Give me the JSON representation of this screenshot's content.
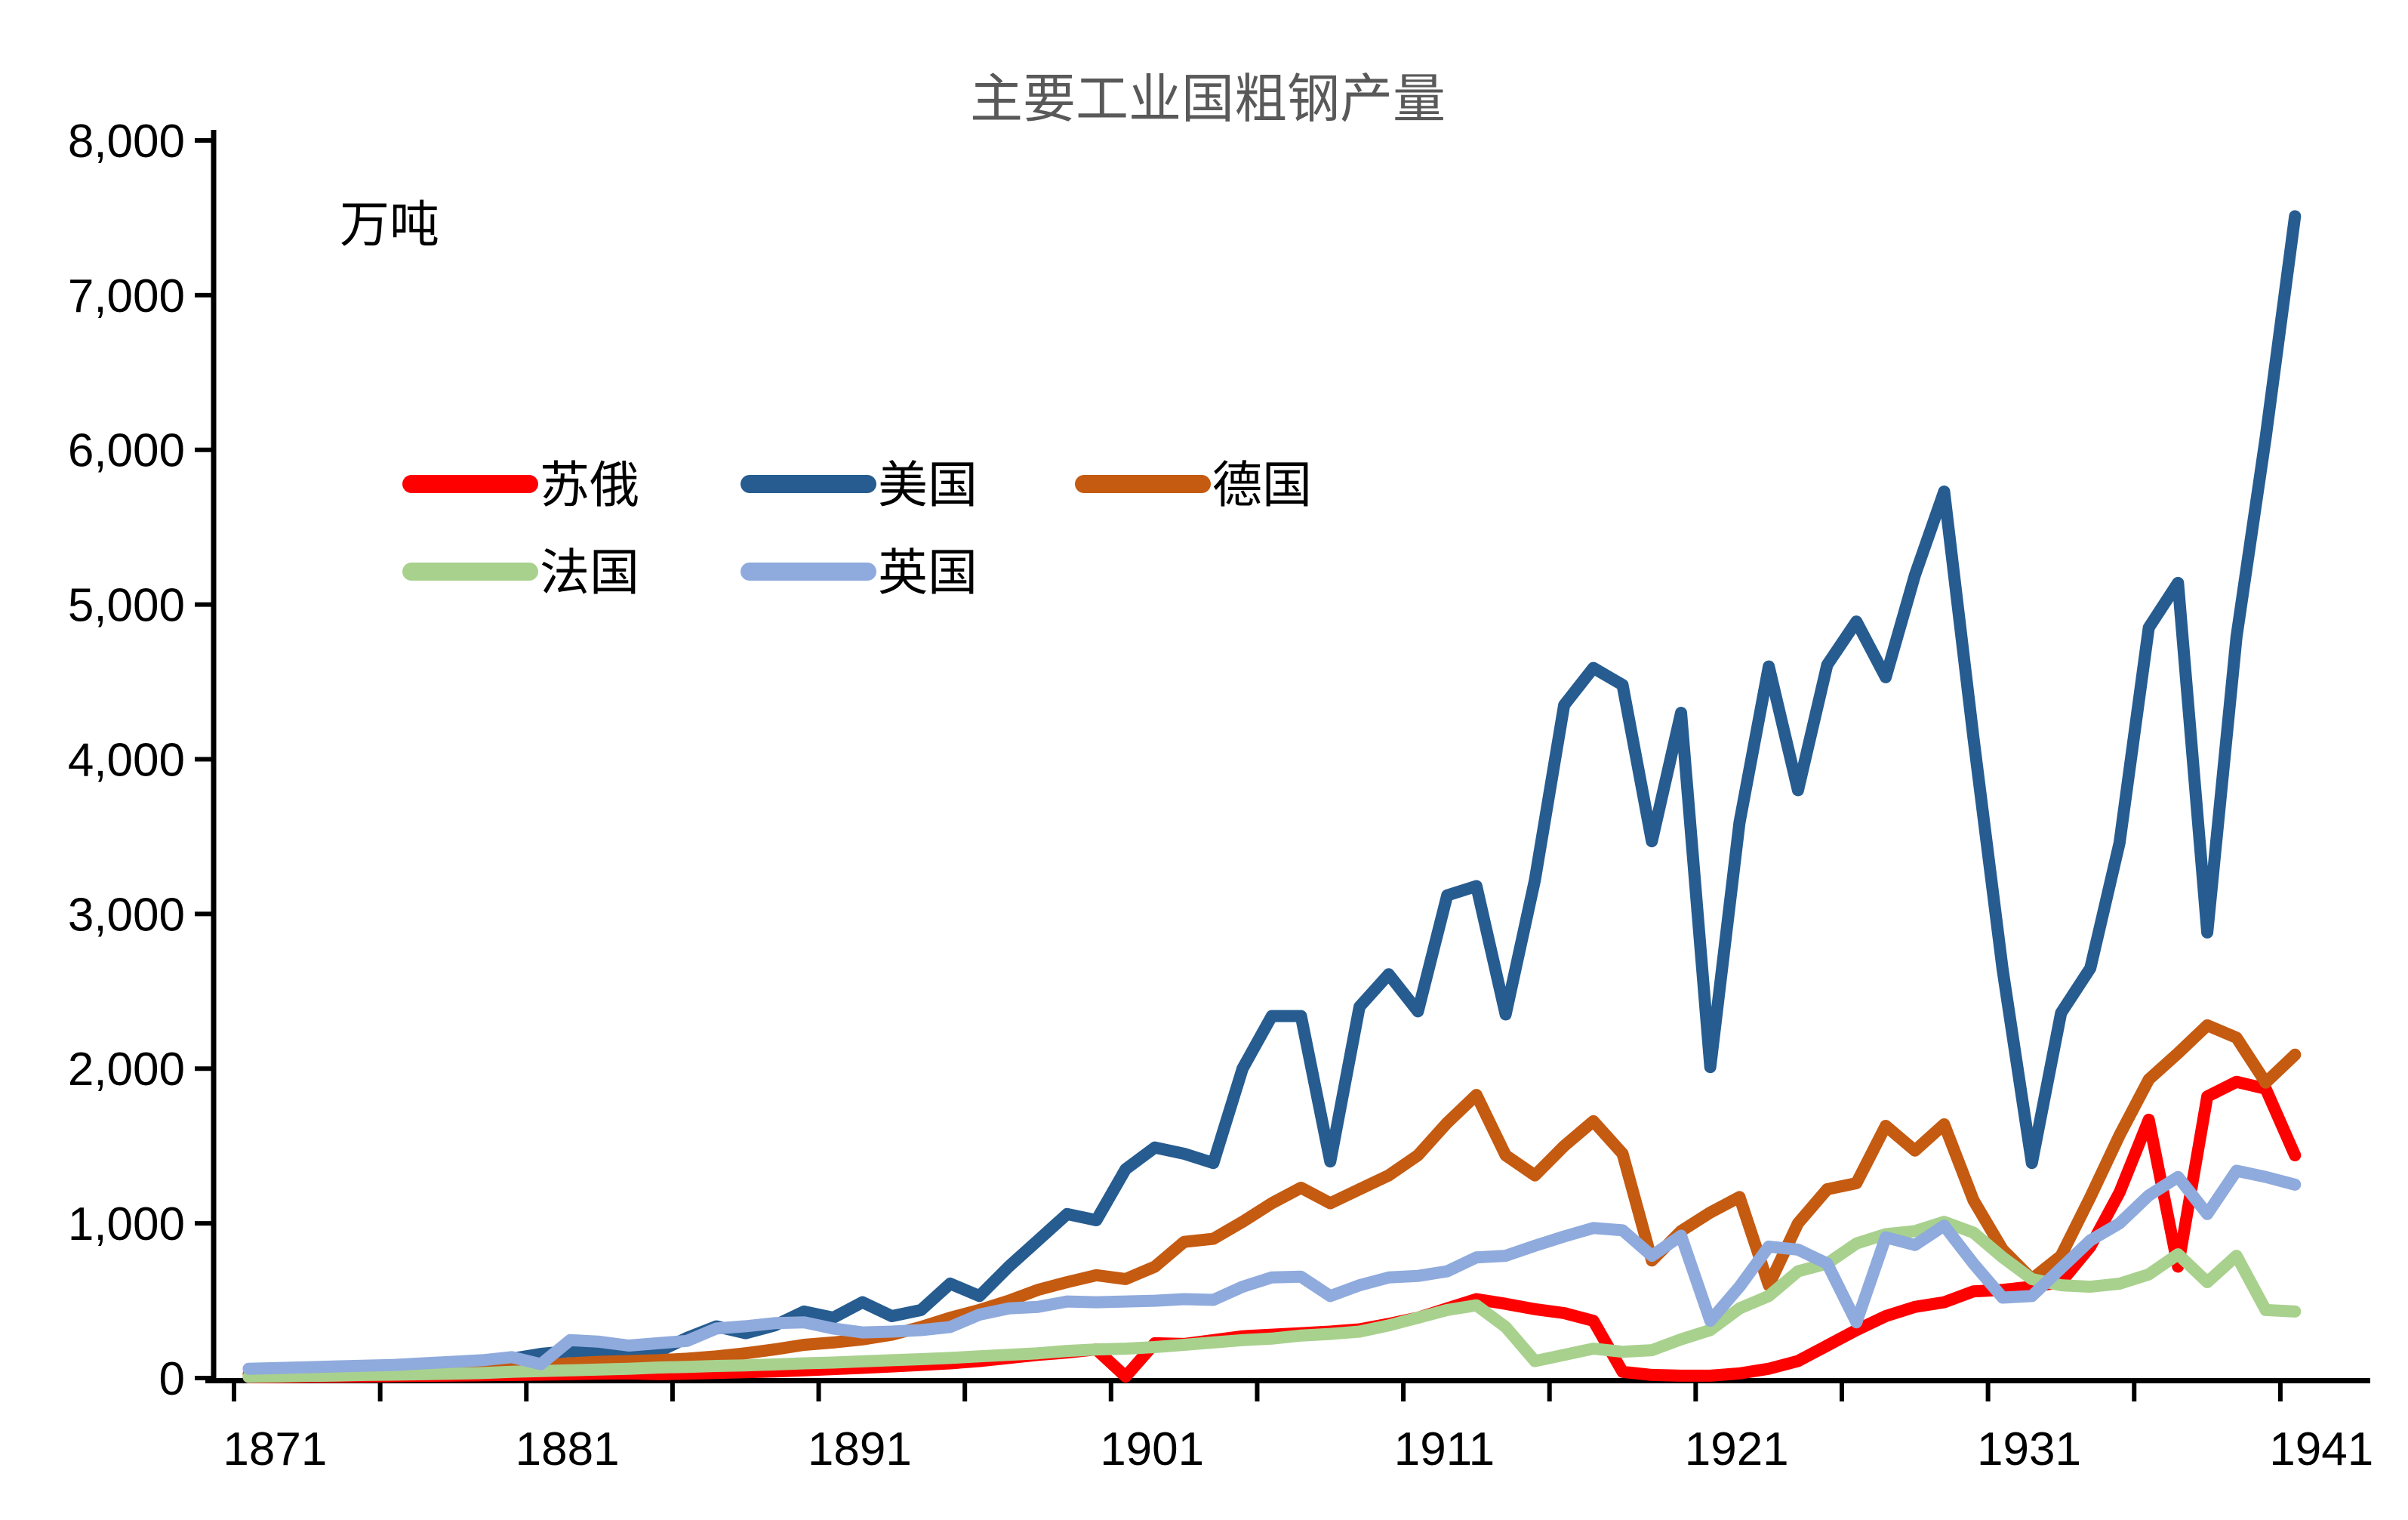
{
  "title": "主要工业国粗钢产量",
  "unit_label": "万吨",
  "colors": {
    "soviet_russia": "#FF0000",
    "usa": "#265C90",
    "germany": "#C55A11",
    "france": "#A9D18E",
    "uk": "#8FAADC",
    "title_gray": "#595959",
    "axis_black": "#000000"
  },
  "chart_data": {
    "type": "line",
    "title": "主要工业国粗钢产量",
    "xlabel": "",
    "ylabel": "万吨",
    "ylim": [
      0,
      8000
    ],
    "grid": false,
    "legend_position": "upper-left-inside",
    "yticks": [
      {
        "v": 0,
        "label": "0"
      },
      {
        "v": 1000,
        "label": "1,000"
      },
      {
        "v": 2000,
        "label": "2,000"
      },
      {
        "v": 3000,
        "label": "3,000"
      },
      {
        "v": 4000,
        "label": "4,000"
      },
      {
        "v": 5000,
        "label": "5,000"
      },
      {
        "v": 6000,
        "label": "6,000"
      },
      {
        "v": 7000,
        "label": "7,000"
      },
      {
        "v": 8000,
        "label": "8,000"
      }
    ],
    "xtick_labels": [
      "1871",
      "1881",
      "1891",
      "1901",
      "1911",
      "1921",
      "1931",
      "1941"
    ],
    "xtick_years": [
      1871,
      1881,
      1891,
      1901,
      1911,
      1921,
      1931,
      1941
    ],
    "x": [
      1871,
      1872,
      1873,
      1874,
      1875,
      1876,
      1877,
      1878,
      1879,
      1880,
      1881,
      1882,
      1883,
      1884,
      1885,
      1886,
      1887,
      1888,
      1889,
      1890,
      1891,
      1892,
      1893,
      1894,
      1895,
      1896,
      1897,
      1898,
      1899,
      1900,
      1901,
      1902,
      1903,
      1904,
      1905,
      1906,
      1907,
      1908,
      1909,
      1910,
      1911,
      1912,
      1913,
      1914,
      1915,
      1916,
      1917,
      1918,
      1919,
      1920,
      1921,
      1922,
      1923,
      1924,
      1925,
      1926,
      1927,
      1928,
      1929,
      1930,
      1931,
      1932,
      1933,
      1934,
      1935,
      1936,
      1937,
      1938,
      1939,
      1940,
      1941
    ],
    "series": [
      {
        "name": "苏俄",
        "color": "#FF0000",
        "values": [
          5,
          6,
          8,
          9,
          10,
          12,
          14,
          16,
          18,
          20,
          22,
          25,
          28,
          30,
          25,
          28,
          33,
          38,
          43,
          50,
          58,
          66,
          75,
          85,
          95,
          110,
          130,
          150,
          165,
          185,
          10,
          225,
          220,
          245,
          270,
          280,
          290,
          300,
          315,
          350,
          390,
          450,
          510,
          480,
          445,
          420,
          370,
          40,
          20,
          15,
          15,
          30,
          60,
          110,
          210,
          310,
          400,
          460,
          490,
          560,
          570,
          590,
          620,
          850,
          1200,
          1670,
          720,
          1820,
          1915,
          1870,
          1440
        ]
      },
      {
        "name": "美国",
        "color": "#265C90",
        "values": [
          7,
          14,
          20,
          22,
          40,
          53,
          57,
          73,
          94,
          125,
          156,
          174,
          167,
          155,
          170,
          260,
          334,
          290,
          340,
          430,
          390,
          490,
          400,
          440,
          610,
          530,
          720,
          890,
          1060,
          1020,
          1350,
          1490,
          1450,
          1390,
          2000,
          2340,
          2340,
          1400,
          2400,
          2610,
          2370,
          3120,
          3180,
          2350,
          3220,
          4350,
          4590,
          4480,
          3470,
          4300,
          2010,
          3590,
          4600,
          3800,
          4610,
          4890,
          4530,
          5190,
          5730,
          4140,
          2640,
          1390,
          2360,
          2650,
          3460,
          4850,
          5140,
          2880,
          4790,
          6080,
          7510
        ]
      },
      {
        "name": "德国",
        "color": "#C55A11",
        "values": [
          25,
          30,
          35,
          38,
          42,
          47,
          52,
          58,
          64,
          70,
          80,
          95,
          105,
          110,
          115,
          125,
          140,
          160,
          185,
          215,
          230,
          250,
          280,
          330,
          390,
          440,
          500,
          570,
          620,
          665,
          640,
          720,
          880,
          900,
          1010,
          1130,
          1230,
          1130,
          1220,
          1310,
          1440,
          1650,
          1830,
          1440,
          1310,
          1500,
          1660,
          1450,
          760,
          950,
          1070,
          1170,
          600,
          1000,
          1220,
          1260,
          1630,
          1470,
          1640,
          1150,
          830,
          640,
          790,
          1170,
          1570,
          1930,
          2100,
          2280,
          2200,
          1910,
          2090
        ]
      },
      {
        "name": "法国",
        "color": "#A9D18E",
        "values": [
          8,
          10,
          13,
          16,
          20,
          22,
          25,
          28,
          32,
          40,
          45,
          50,
          55,
          60,
          68,
          72,
          78,
          82,
          88,
          95,
          100,
          108,
          115,
          122,
          130,
          140,
          150,
          160,
          175,
          185,
          190,
          200,
          215,
          230,
          245,
          255,
          275,
          285,
          300,
          340,
          390,
          440,
          470,
          330,
          110,
          150,
          190,
          170,
          180,
          250,
          310,
          450,
          530,
          690,
          740,
          870,
          930,
          950,
          1010,
          940,
          780,
          640,
          600,
          590,
          610,
          670,
          800,
          620,
          790,
          440,
          430
        ]
      },
      {
        "name": "英国",
        "color": "#8FAADC",
        "values": [
          60,
          65,
          70,
          75,
          80,
          85,
          95,
          105,
          115,
          135,
          90,
          245,
          235,
          210,
          225,
          240,
          320,
          335,
          355,
          360,
          320,
          295,
          300,
          310,
          330,
          410,
          450,
          460,
          495,
          490,
          495,
          500,
          510,
          505,
          590,
          650,
          655,
          530,
          600,
          650,
          660,
          690,
          780,
          790,
          855,
          915,
          970,
          955,
          790,
          920,
          370,
          590,
          850,
          830,
          740,
          360,
          910,
          860,
          985,
          740,
          520,
          530,
          710,
          890,
          1000,
          1180,
          1300,
          1060,
          1340,
          1300,
          1250
        ]
      }
    ]
  },
  "legend": {
    "items": [
      {
        "label": "苏俄",
        "color": "#FF0000"
      },
      {
        "label": "美国",
        "color": "#265C90"
      },
      {
        "label": "德国",
        "color": "#C55A11"
      },
      {
        "label": "法国",
        "color": "#A9D18E"
      },
      {
        "label": "英国",
        "color": "#8FAADC"
      }
    ]
  }
}
